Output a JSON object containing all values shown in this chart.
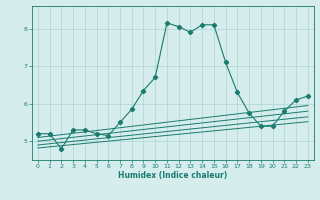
{
  "title": "",
  "xlabel": "Humidex (Indice chaleur)",
  "ylabel": "",
  "bg_color": "#d5eeed",
  "grid_color": "#b0d4d0",
  "line_color": "#1a7a6e",
  "xlim": [
    -0.5,
    23.5
  ],
  "ylim": [
    4.5,
    8.6
  ],
  "yticks": [
    5,
    6,
    7,
    8
  ],
  "xticks": [
    0,
    1,
    2,
    3,
    4,
    5,
    6,
    7,
    8,
    9,
    10,
    11,
    12,
    13,
    14,
    15,
    16,
    17,
    18,
    19,
    20,
    21,
    22,
    23
  ],
  "lines": [
    {
      "x": [
        0,
        1,
        2,
        3,
        4,
        5,
        6,
        7,
        8,
        9,
        10,
        11,
        12,
        13,
        14,
        15,
        16,
        17,
        18,
        19,
        20,
        21,
        22,
        23
      ],
      "y": [
        5.2,
        5.2,
        4.8,
        5.3,
        5.3,
        5.2,
        5.15,
        5.5,
        5.85,
        6.35,
        6.7,
        8.15,
        8.05,
        7.9,
        8.1,
        8.1,
        7.1,
        6.3,
        5.75,
        5.4,
        5.4,
        5.8,
        6.1,
        6.2
      ],
      "marker": true
    },
    {
      "x": [
        0,
        23
      ],
      "y": [
        5.1,
        5.95
      ],
      "marker": false
    },
    {
      "x": [
        0,
        23
      ],
      "y": [
        5.0,
        5.8
      ],
      "marker": false
    },
    {
      "x": [
        0,
        23
      ],
      "y": [
        4.9,
        5.65
      ],
      "marker": false
    },
    {
      "x": [
        0,
        23
      ],
      "y": [
        4.82,
        5.52
      ],
      "marker": false
    }
  ],
  "tick_fontsize": 4.5,
  "xlabel_fontsize": 5.5
}
